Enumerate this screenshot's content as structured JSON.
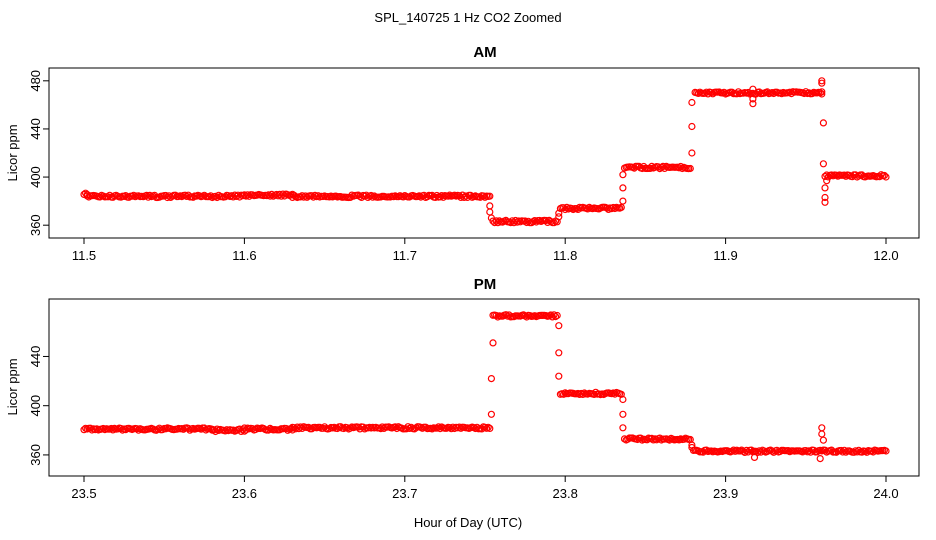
{
  "figure": {
    "suptitle": "SPL_140725  1 Hz CO2 Zoomed",
    "xlabel": "Hour of Day (UTC)",
    "point_color": "#ff0000",
    "marker": "open-circle"
  },
  "chart_data": [
    {
      "type": "scatter",
      "title": "AM",
      "xlabel": "Hour of Day (UTC)",
      "ylabel": "Licor ppm",
      "xlim": [
        11.5,
        12.0
      ],
      "ylim": [
        356,
        484
      ],
      "xticks": [
        "11.5",
        "11.6",
        "11.7",
        "11.8",
        "11.9",
        "12.0"
      ],
      "yticks": [
        "360",
        "400",
        "440",
        "480"
      ],
      "grid": false,
      "segments": [
        {
          "x": [
            11.5,
            11.502
          ],
          "y": [
            386,
            386
          ]
        },
        {
          "x": [
            11.502,
            11.6
          ],
          "y": [
            384,
            384
          ]
        },
        {
          "x": [
            11.6,
            11.63
          ],
          "y": [
            385,
            385
          ]
        },
        {
          "x": [
            11.63,
            11.753
          ],
          "y": [
            384,
            384
          ]
        },
        {
          "x": [
            11.755,
            11.795
          ],
          "y": [
            363,
            363
          ]
        },
        {
          "x": [
            11.797,
            11.835
          ],
          "y": [
            374,
            374
          ]
        },
        {
          "x": [
            11.837,
            11.878
          ],
          "y": [
            408,
            408
          ]
        },
        {
          "x": [
            11.881,
            11.96
          ],
          "y": [
            470,
            470
          ]
        },
        {
          "x": [
            11.962,
            12.0
          ],
          "y": [
            401,
            401
          ]
        }
      ],
      "points": [
        {
          "x": 11.753,
          "y": 376
        },
        {
          "x": 11.753,
          "y": 371
        },
        {
          "x": 11.754,
          "y": 366
        },
        {
          "x": 11.796,
          "y": 367
        },
        {
          "x": 11.796,
          "y": 370
        },
        {
          "x": 11.836,
          "y": 380
        },
        {
          "x": 11.836,
          "y": 391
        },
        {
          "x": 11.836,
          "y": 402
        },
        {
          "x": 11.879,
          "y": 420
        },
        {
          "x": 11.879,
          "y": 442
        },
        {
          "x": 11.879,
          "y": 462
        },
        {
          "x": 11.917,
          "y": 473
        },
        {
          "x": 11.917,
          "y": 465
        },
        {
          "x": 11.917,
          "y": 461
        },
        {
          "x": 11.96,
          "y": 478
        },
        {
          "x": 11.96,
          "y": 480
        },
        {
          "x": 11.96,
          "y": 469
        },
        {
          "x": 11.961,
          "y": 445
        },
        {
          "x": 11.961,
          "y": 411
        },
        {
          "x": 11.962,
          "y": 391
        },
        {
          "x": 11.962,
          "y": 383
        },
        {
          "x": 11.962,
          "y": 379
        },
        {
          "x": 11.963,
          "y": 397
        }
      ]
    },
    {
      "type": "scatter",
      "title": "PM",
      "xlabel": "Hour of Day (UTC)",
      "ylabel": "Licor ppm",
      "xlim": [
        23.5,
        24.0
      ],
      "ylim": [
        351,
        481
      ],
      "xticks": [
        "23.5",
        "23.6",
        "23.7",
        "23.8",
        "23.9",
        "24.0"
      ],
      "yticks": [
        "360",
        "400",
        "440"
      ],
      "grid": false,
      "segments": [
        {
          "x": [
            23.5,
            23.58
          ],
          "y": [
            381,
            381
          ]
        },
        {
          "x": [
            23.58,
            23.6
          ],
          "y": [
            380,
            380
          ]
        },
        {
          "x": [
            23.6,
            23.63
          ],
          "y": [
            381,
            381
          ]
        },
        {
          "x": [
            23.63,
            23.753
          ],
          "y": [
            382,
            382
          ]
        },
        {
          "x": [
            23.755,
            23.795
          ],
          "y": [
            473,
            473
          ]
        },
        {
          "x": [
            23.797,
            23.835
          ],
          "y": [
            410,
            410
          ]
        },
        {
          "x": [
            23.837,
            23.878
          ],
          "y": [
            373,
            373
          ]
        },
        {
          "x": [
            23.88,
            24.0
          ],
          "y": [
            363,
            363
          ]
        }
      ],
      "points": [
        {
          "x": 23.754,
          "y": 393
        },
        {
          "x": 23.754,
          "y": 422
        },
        {
          "x": 23.755,
          "y": 451
        },
        {
          "x": 23.796,
          "y": 465
        },
        {
          "x": 23.796,
          "y": 443
        },
        {
          "x": 23.796,
          "y": 424
        },
        {
          "x": 23.836,
          "y": 405
        },
        {
          "x": 23.836,
          "y": 393
        },
        {
          "x": 23.836,
          "y": 382
        },
        {
          "x": 23.879,
          "y": 368
        },
        {
          "x": 23.879,
          "y": 366
        },
        {
          "x": 23.918,
          "y": 363
        },
        {
          "x": 23.918,
          "y": 358
        },
        {
          "x": 23.959,
          "y": 357
        },
        {
          "x": 23.96,
          "y": 382
        },
        {
          "x": 23.96,
          "y": 377
        },
        {
          "x": 23.961,
          "y": 372
        }
      ]
    }
  ]
}
